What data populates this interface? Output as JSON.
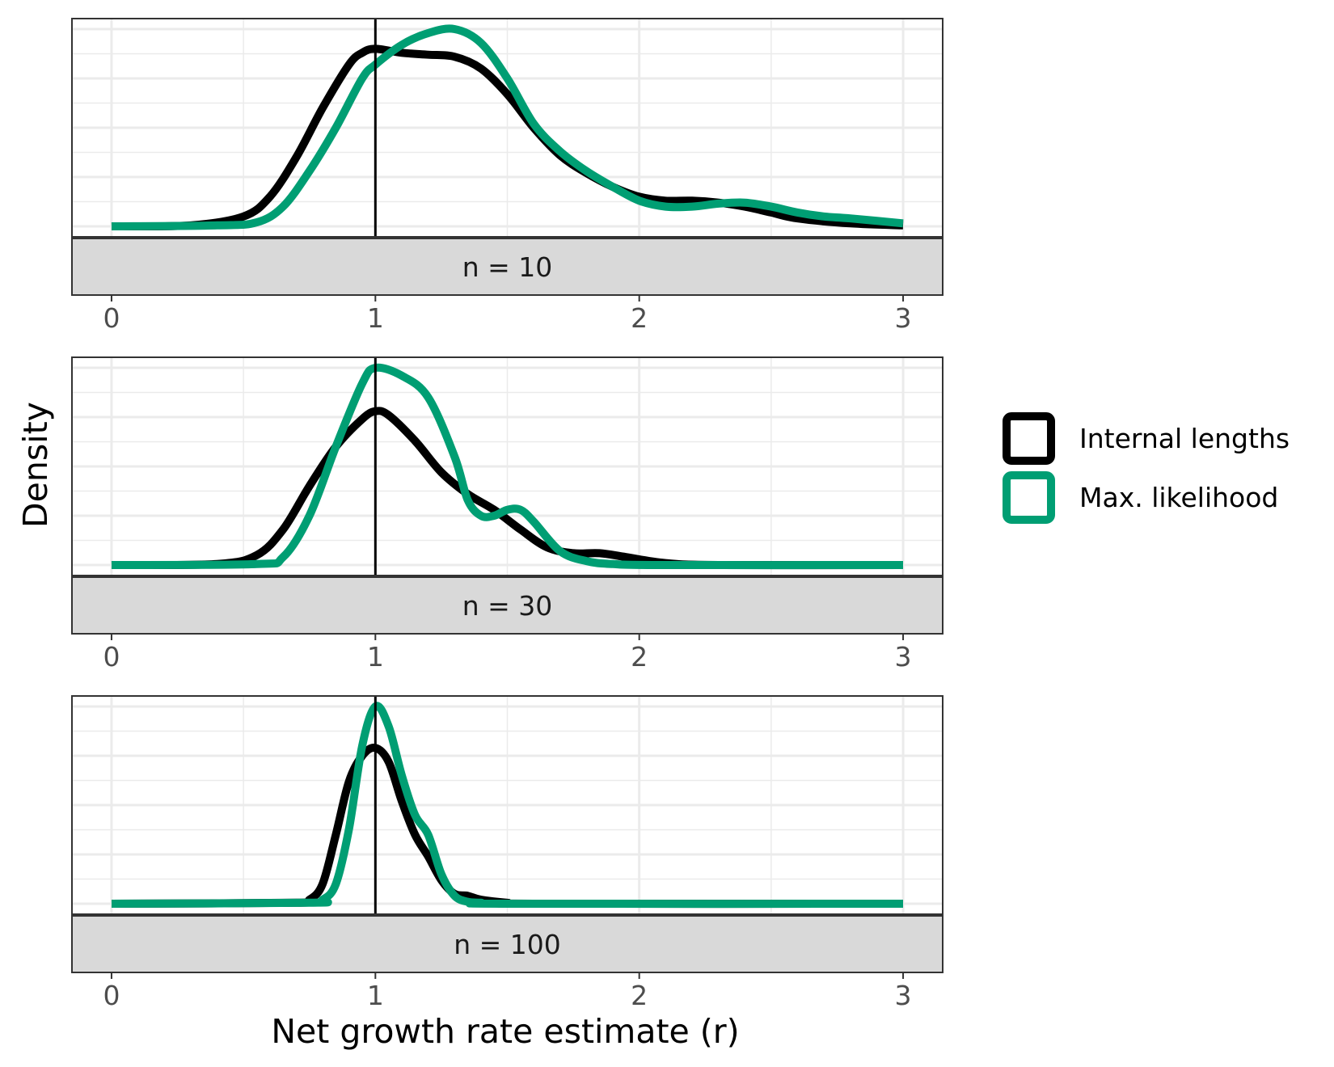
{
  "chart_data": {
    "type": "line",
    "subtype": "density, faceted",
    "xlabel": "Net growth rate estimate (r)",
    "ylabel": "Density",
    "xlim": [
      -0.15,
      3.15
    ],
    "x_ticks": [
      "0",
      "1",
      "2",
      "3"
    ],
    "y_tick_labels_shown": false,
    "grid": true,
    "reference_line_x": 1,
    "legend": {
      "position": "right",
      "entries": [
        {
          "label": "Internal lengths",
          "color": "#000000"
        },
        {
          "label": "Max. likelihood",
          "color": "#009E73"
        }
      ]
    },
    "facets": [
      {
        "strip_label": "n = 10",
        "series": [
          {
            "name": "Internal lengths",
            "color": "#000000",
            "points": [
              [
                0,
                0
              ],
              [
                0.3,
                0.005
              ],
              [
                0.5,
                0.05
              ],
              [
                0.6,
                0.15
              ],
              [
                0.7,
                0.35
              ],
              [
                0.8,
                0.6
              ],
              [
                0.9,
                0.82
              ],
              [
                0.95,
                0.88
              ],
              [
                1.0,
                0.9
              ],
              [
                1.1,
                0.88
              ],
              [
                1.2,
                0.87
              ],
              [
                1.3,
                0.86
              ],
              [
                1.4,
                0.8
              ],
              [
                1.5,
                0.67
              ],
              [
                1.6,
                0.5
              ],
              [
                1.7,
                0.36
              ],
              [
                1.8,
                0.27
              ],
              [
                1.9,
                0.2
              ],
              [
                2.0,
                0.15
              ],
              [
                2.1,
                0.13
              ],
              [
                2.2,
                0.13
              ],
              [
                2.3,
                0.12
              ],
              [
                2.4,
                0.1
              ],
              [
                2.5,
                0.07
              ],
              [
                2.6,
                0.04
              ],
              [
                2.8,
                0.015
              ],
              [
                3.0,
                0.005
              ]
            ]
          },
          {
            "name": "Max. likelihood",
            "color": "#009E73",
            "points": [
              [
                0,
                0
              ],
              [
                0.4,
                0.005
              ],
              [
                0.55,
                0.02
              ],
              [
                0.65,
                0.1
              ],
              [
                0.75,
                0.28
              ],
              [
                0.85,
                0.5
              ],
              [
                0.95,
                0.75
              ],
              [
                1.0,
                0.82
              ],
              [
                1.1,
                0.92
              ],
              [
                1.2,
                0.98
              ],
              [
                1.3,
                1.0
              ],
              [
                1.4,
                0.93
              ],
              [
                1.5,
                0.75
              ],
              [
                1.6,
                0.52
              ],
              [
                1.7,
                0.38
              ],
              [
                1.8,
                0.28
              ],
              [
                1.9,
                0.2
              ],
              [
                2.0,
                0.13
              ],
              [
                2.1,
                0.1
              ],
              [
                2.2,
                0.1
              ],
              [
                2.3,
                0.115
              ],
              [
                2.4,
                0.12
              ],
              [
                2.5,
                0.1
              ],
              [
                2.6,
                0.07
              ],
              [
                2.7,
                0.05
              ],
              [
                2.8,
                0.04
              ],
              [
                3.0,
                0.015
              ]
            ]
          }
        ]
      },
      {
        "strip_label": "n = 30",
        "series": [
          {
            "name": "Internal lengths",
            "color": "#000000",
            "points": [
              [
                0,
                0
              ],
              [
                0.4,
                0.005
              ],
              [
                0.55,
                0.05
              ],
              [
                0.65,
                0.18
              ],
              [
                0.75,
                0.4
              ],
              [
                0.85,
                0.6
              ],
              [
                0.95,
                0.74
              ],
              [
                1.0,
                0.78
              ],
              [
                1.05,
                0.76
              ],
              [
                1.15,
                0.63
              ],
              [
                1.25,
                0.47
              ],
              [
                1.35,
                0.36
              ],
              [
                1.45,
                0.28
              ],
              [
                1.55,
                0.18
              ],
              [
                1.65,
                0.09
              ],
              [
                1.75,
                0.06
              ],
              [
                1.85,
                0.06
              ],
              [
                1.95,
                0.04
              ],
              [
                2.1,
                0.01
              ],
              [
                2.3,
                0
              ],
              [
                3.0,
                0
              ]
            ]
          },
          {
            "name": "Max. likelihood",
            "color": "#009E73",
            "points": [
              [
                0,
                0
              ],
              [
                0.55,
                0.005
              ],
              [
                0.65,
                0.04
              ],
              [
                0.75,
                0.25
              ],
              [
                0.85,
                0.6
              ],
              [
                0.95,
                0.92
              ],
              [
                1.0,
                1.0
              ],
              [
                1.1,
                0.96
              ],
              [
                1.2,
                0.85
              ],
              [
                1.3,
                0.55
              ],
              [
                1.35,
                0.33
              ],
              [
                1.4,
                0.25
              ],
              [
                1.45,
                0.25
              ],
              [
                1.5,
                0.28
              ],
              [
                1.55,
                0.28
              ],
              [
                1.6,
                0.22
              ],
              [
                1.7,
                0.07
              ],
              [
                1.8,
                0.02
              ],
              [
                1.9,
                0.005
              ],
              [
                2.1,
                0
              ],
              [
                3.0,
                0
              ]
            ]
          }
        ]
      },
      {
        "strip_label": "n = 100",
        "series": [
          {
            "name": "Internal lengths",
            "color": "#000000",
            "points": [
              [
                0,
                0
              ],
              [
                0.7,
                0.005
              ],
              [
                0.75,
                0.02
              ],
              [
                0.8,
                0.1
              ],
              [
                0.85,
                0.35
              ],
              [
                0.9,
                0.62
              ],
              [
                0.95,
                0.75
              ],
              [
                1.0,
                0.79
              ],
              [
                1.05,
                0.72
              ],
              [
                1.1,
                0.52
              ],
              [
                1.15,
                0.35
              ],
              [
                1.2,
                0.24
              ],
              [
                1.25,
                0.12
              ],
              [
                1.3,
                0.05
              ],
              [
                1.35,
                0.04
              ],
              [
                1.4,
                0.02
              ],
              [
                1.5,
                0.005
              ],
              [
                1.6,
                0
              ],
              [
                3.0,
                0
              ]
            ]
          },
          {
            "name": "Max. likelihood",
            "color": "#009E73",
            "points": [
              [
                0,
                0
              ],
              [
                0.75,
                0.005
              ],
              [
                0.8,
                0.02
              ],
              [
                0.85,
                0.1
              ],
              [
                0.9,
                0.38
              ],
              [
                0.95,
                0.8
              ],
              [
                1.0,
                1.0
              ],
              [
                1.05,
                0.9
              ],
              [
                1.1,
                0.65
              ],
              [
                1.15,
                0.45
              ],
              [
                1.2,
                0.35
              ],
              [
                1.25,
                0.15
              ],
              [
                1.3,
                0.04
              ],
              [
                1.35,
                0.01
              ],
              [
                1.4,
                0.005
              ],
              [
                1.5,
                0
              ],
              [
                3.0,
                0
              ]
            ]
          }
        ]
      }
    ]
  }
}
